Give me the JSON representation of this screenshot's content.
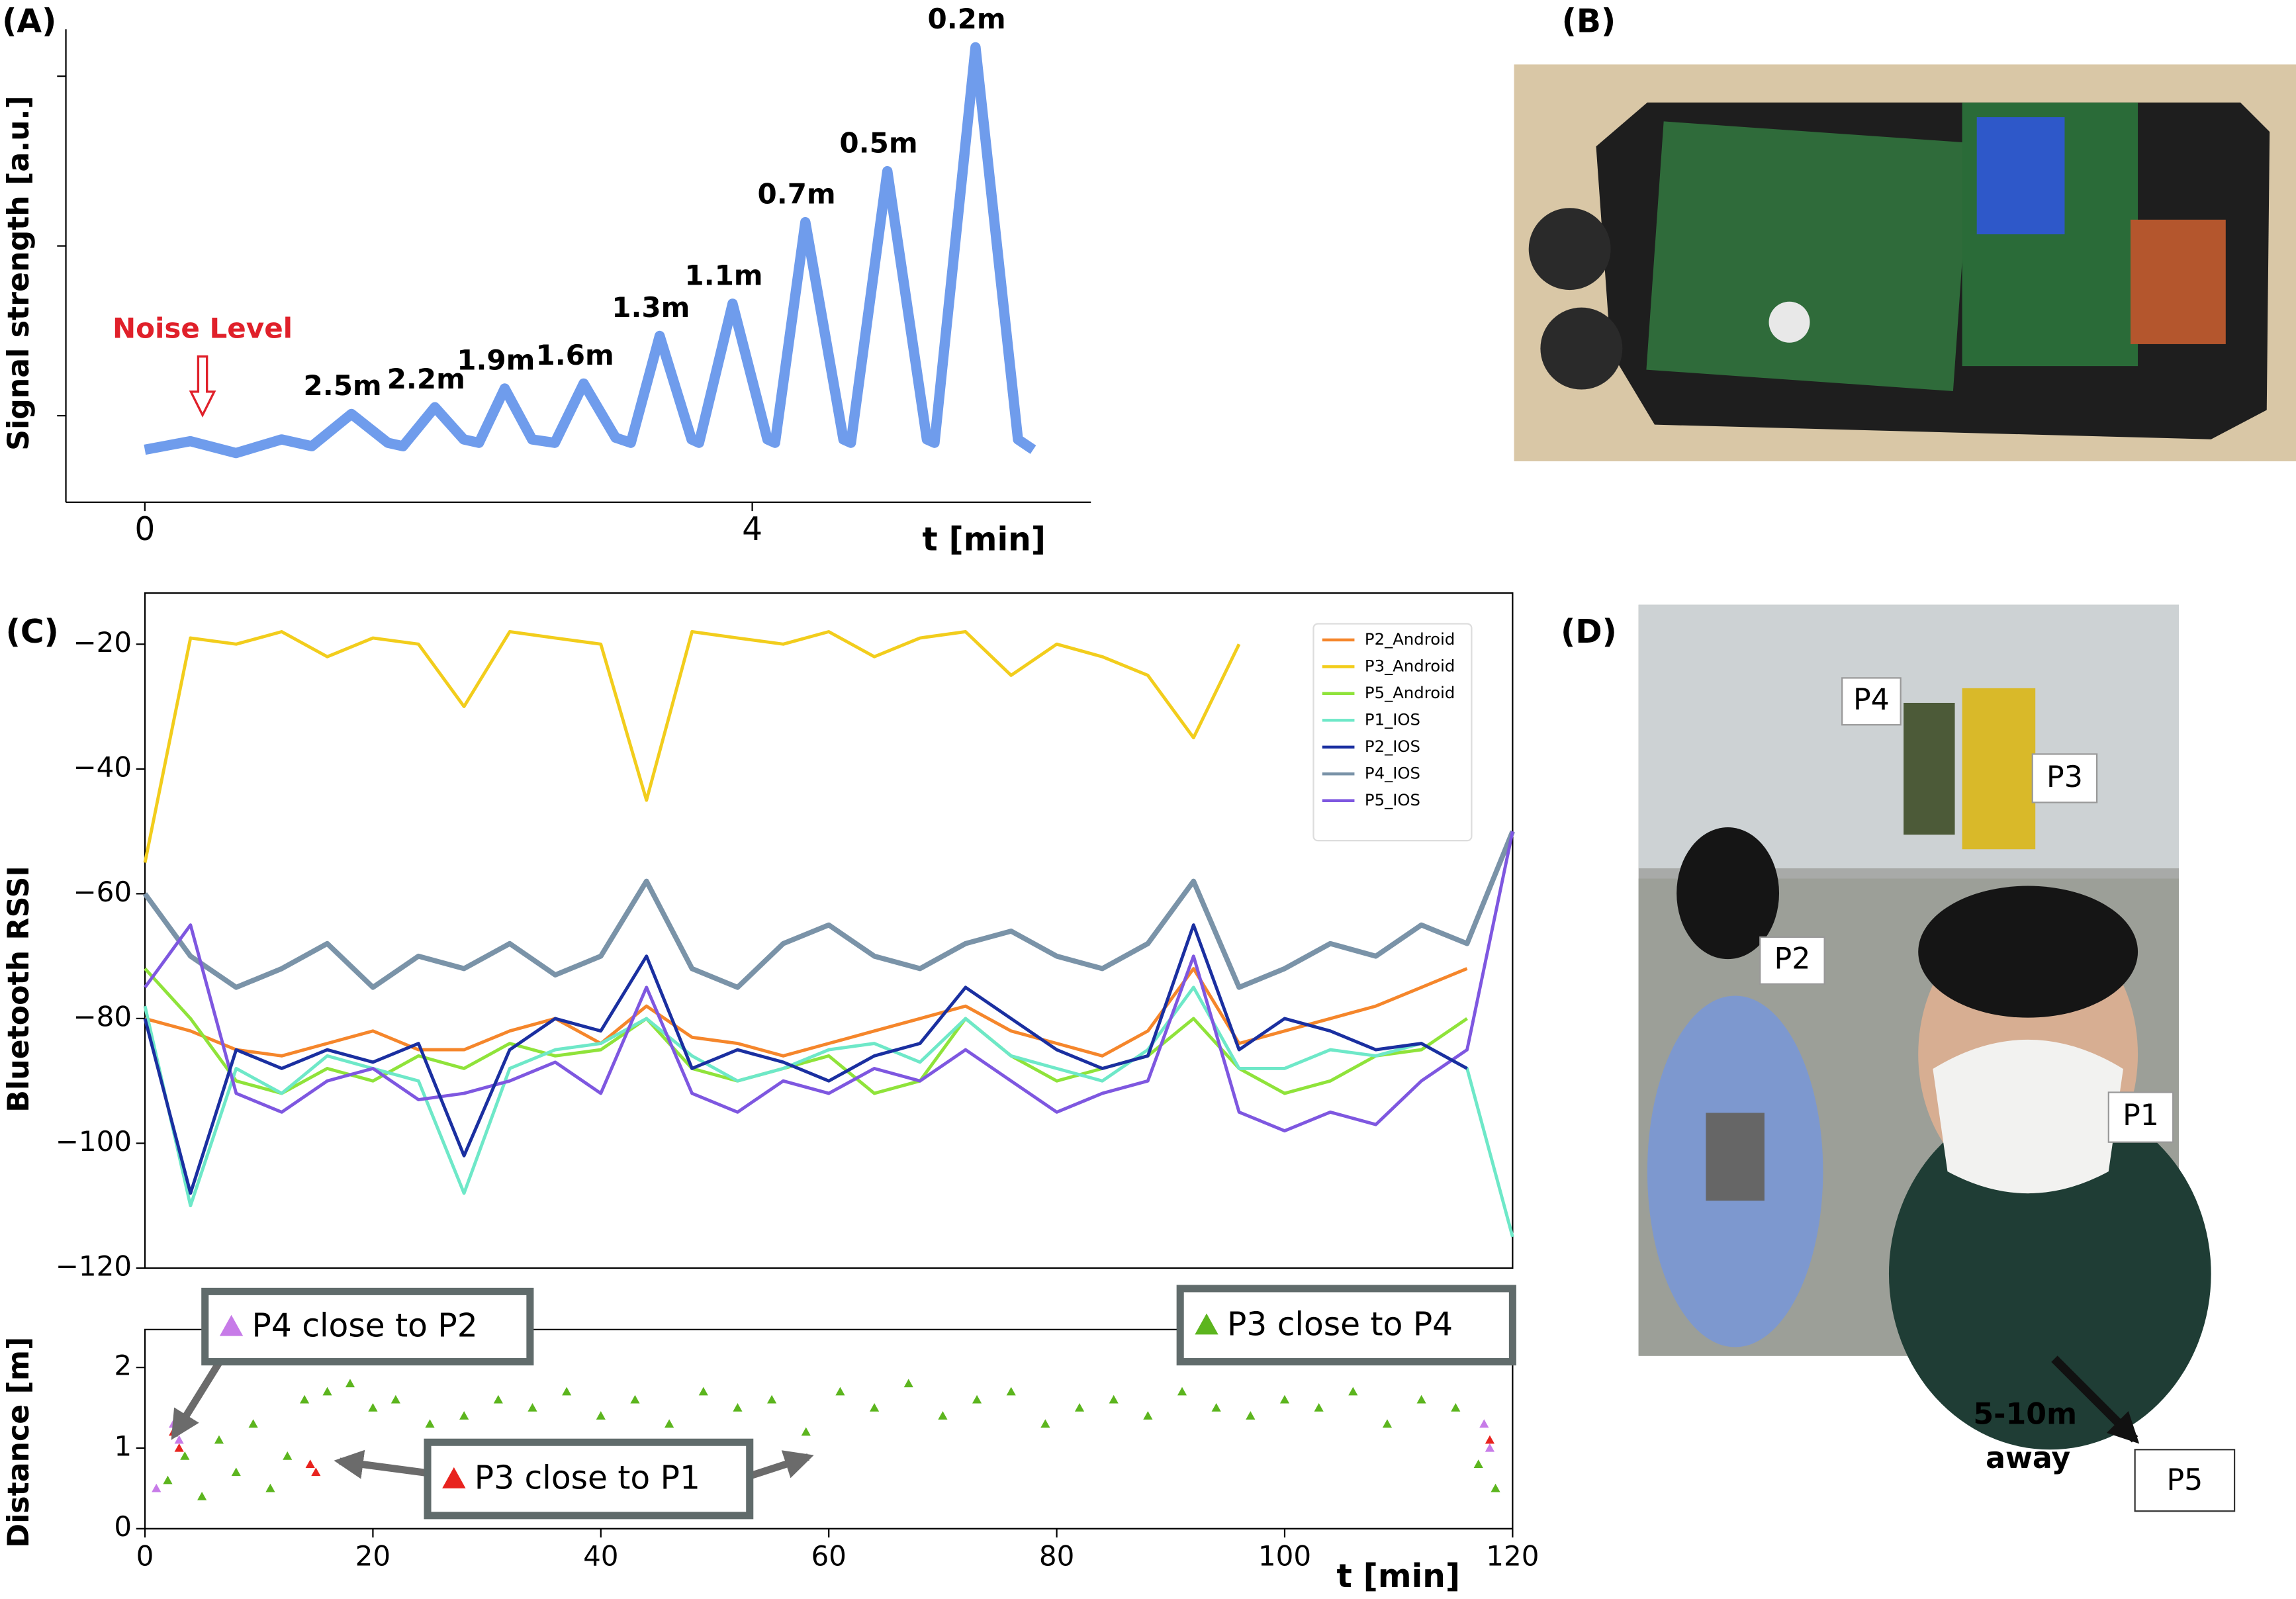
{
  "panel_labels": [
    "(A)",
    "(B)",
    "(C)",
    "(D)"
  ],
  "chart_data": [
    {
      "type": "line",
      "ylabel": "Signal strength [a.u.]",
      "xlabel": "t [min]",
      "color": "#6f9cec",
      "xlim": [
        -0.52,
        6.23
      ],
      "xticks": [
        0,
        4
      ],
      "ylim": [
        0.49,
        3.19
      ],
      "yticks": [
        1,
        2,
        3
      ],
      "x": [
        0,
        0.3,
        0.6,
        0.9,
        1.1,
        1.36,
        1.6,
        1.7,
        1.91,
        2.1,
        2.2,
        2.37,
        2.55,
        2.7,
        2.89,
        3.1,
        3.2,
        3.39,
        3.6,
        3.65,
        3.87,
        4.1,
        4.15,
        4.35,
        4.6,
        4.65,
        4.89,
        5.15,
        5.2,
        5.47,
        5.75,
        5.85
      ],
      "values": [
        0.8,
        0.85,
        0.78,
        0.86,
        0.82,
        1.01,
        0.84,
        0.82,
        1.05,
        0.86,
        0.84,
        1.16,
        0.86,
        0.84,
        1.19,
        0.87,
        0.84,
        1.47,
        0.86,
        0.84,
        1.66,
        0.86,
        0.84,
        2.14,
        0.86,
        0.84,
        2.44,
        0.86,
        0.84,
        3.17,
        0.86,
        0.8
      ],
      "annotations": [
        {
          "text": "2.5m",
          "x": 1.36,
          "y": 1.01
        },
        {
          "text": "2.2m",
          "x": 1.91,
          "y": 1.05
        },
        {
          "text": "1.9m",
          "x": 2.37,
          "y": 1.16
        },
        {
          "text": "1.6m",
          "x": 2.89,
          "y": 1.19
        },
        {
          "text": "1.3m",
          "x": 3.39,
          "y": 1.47
        },
        {
          "text": "1.1m",
          "x": 3.87,
          "y": 1.66
        },
        {
          "text": "0.7m",
          "x": 4.35,
          "y": 2.14
        },
        {
          "text": "0.5m",
          "x": 4.89,
          "y": 2.44
        },
        {
          "text": "0.2m",
          "x": 5.47,
          "y": 3.17
        }
      ],
      "noise_label": {
        "text": "Noise Level",
        "x": 0.38,
        "y": 0.9
      }
    },
    {
      "type": "line",
      "ylabel": "Bluetooth RSSI",
      "legend": "upper right",
      "xlim": [
        0,
        120
      ],
      "ylim": [
        -120,
        -11.8
      ],
      "yticks": [
        {
          "value": -120,
          "label": "−120"
        },
        {
          "value": -100,
          "label": "−100"
        },
        {
          "value": -80,
          "label": "−80"
        },
        {
          "value": -60,
          "label": "−60"
        },
        {
          "value": -40,
          "label": "−40"
        },
        {
          "value": -20,
          "label": "−20"
        }
      ],
      "x": [
        0,
        4,
        8,
        12,
        16,
        20,
        24,
        28,
        32,
        36,
        40,
        44,
        48,
        52,
        56,
        60,
        64,
        68,
        72,
        76,
        80,
        84,
        88,
        92,
        96,
        100,
        104,
        108,
        112,
        116,
        120
      ],
      "series": [
        {
          "name": "P2_Android",
          "color": "#f5862b",
          "values": [
            -80,
            -82,
            -85,
            -86,
            -84,
            -82,
            -85,
            -85,
            -82,
            -80,
            -84,
            -78,
            -83,
            -84,
            -86,
            -84,
            -82,
            -80,
            -78,
            -82,
            -84,
            -86,
            -82,
            -72,
            -84,
            -82,
            -80,
            -78,
            -75,
            -72,
            null
          ]
        },
        {
          "name": "P3_Android",
          "color": "#f2cd1c",
          "values": [
            -55,
            -19,
            -20,
            -18,
            -22,
            -19,
            -20,
            -30,
            -18,
            -19,
            -20,
            -45,
            -18,
            -19,
            -20,
            -18,
            -22,
            -19,
            -18,
            -25,
            -20,
            -22,
            -25,
            -35,
            -20,
            null,
            null,
            null,
            null,
            null,
            null
          ]
        },
        {
          "name": "P5_Android",
          "color": "#8fe33a",
          "values": [
            -72,
            -80,
            -90,
            -92,
            -88,
            -90,
            -86,
            -88,
            -84,
            -86,
            -85,
            -80,
            -88,
            -90,
            -88,
            -86,
            -92,
            -90,
            -80,
            -86,
            -90,
            -88,
            -86,
            -80,
            -88,
            -92,
            -90,
            -86,
            -85,
            -80,
            null
          ]
        },
        {
          "name": "P1_IOS",
          "color": "#6ee8c8",
          "values": [
            -78,
            -110,
            -88,
            -92,
            -86,
            -88,
            -90,
            -108,
            -88,
            -85,
            -84,
            -80,
            -86,
            -90,
            -88,
            -85,
            -84,
            -87,
            -80,
            -86,
            -88,
            -90,
            -85,
            -75,
            -88,
            -88,
            -85,
            -86,
            -84,
            -88,
            -115
          ]
        },
        {
          "name": "P2_IOS",
          "color": "#1a2fa0",
          "values": [
            -80,
            -108,
            -85,
            -88,
            -85,
            -87,
            -84,
            -102,
            -85,
            -80,
            -82,
            -70,
            -88,
            -85,
            -87,
            -90,
            -86,
            -84,
            -75,
            -80,
            -85,
            -88,
            -86,
            -65,
            -85,
            -80,
            -82,
            -85,
            -84,
            -88,
            null
          ]
        },
        {
          "name": "P4_IOS",
          "color": "#7a93a8",
          "values": [
            -60,
            -70,
            -75,
            -72,
            -68,
            -75,
            -70,
            -72,
            -68,
            -73,
            -70,
            -58,
            -72,
            -75,
            -68,
            -65,
            -70,
            -72,
            -68,
            -66,
            -70,
            -72,
            -68,
            -58,
            -75,
            -72,
            -68,
            -70,
            -65,
            -68,
            -50
          ]
        },
        {
          "name": "P5_IOS",
          "color": "#7e57e0",
          "values": [
            -75,
            -65,
            -92,
            -95,
            -90,
            -88,
            -93,
            -92,
            -90,
            -87,
            -92,
            -75,
            -92,
            -95,
            -90,
            -92,
            -88,
            -90,
            -85,
            -90,
            -95,
            -92,
            -90,
            -70,
            -95,
            -98,
            -95,
            -97,
            -90,
            -85,
            -50
          ]
        }
      ]
    },
    {
      "type": "scatter",
      "ylabel": "Distance [m]",
      "xlabel": "t [min]",
      "xlim": [
        0,
        120
      ],
      "xticks": [
        0,
        20,
        40,
        60,
        80,
        100,
        120
      ],
      "ylim": [
        0,
        2.47
      ],
      "yticks": [
        0,
        1,
        2
      ],
      "series": [
        {
          "name": "P4 close to P2",
          "color": "#c77be8",
          "x": [
            1,
            2.5,
            3,
            117.5,
            118
          ],
          "values": [
            0.5,
            1.3,
            1.1,
            1.3,
            1.0
          ]
        },
        {
          "name": "P3 close to P4",
          "color": "#5cb51e",
          "x": [
            2,
            3.5,
            5,
            6.5,
            8,
            9.5,
            11,
            12.5,
            14,
            16,
            18,
            20,
            22,
            25,
            28,
            31,
            34,
            37,
            40,
            43,
            46,
            49,
            52,
            55,
            58,
            61,
            64,
            67,
            70,
            73,
            76,
            79,
            82,
            85,
            88,
            91,
            94,
            97,
            100,
            103,
            106,
            109,
            112,
            115,
            117,
            118.5
          ],
          "values": [
            0.6,
            0.9,
            0.4,
            1.1,
            0.7,
            1.3,
            0.5,
            0.9,
            1.6,
            1.7,
            1.8,
            1.5,
            1.6,
            1.3,
            1.4,
            1.6,
            1.5,
            1.7,
            1.4,
            1.6,
            1.3,
            1.7,
            1.5,
            1.6,
            1.2,
            1.7,
            1.5,
            1.8,
            1.4,
            1.6,
            1.7,
            1.3,
            1.5,
            1.6,
            1.4,
            1.7,
            1.5,
            1.4,
            1.6,
            1.5,
            1.7,
            1.3,
            1.6,
            1.5,
            0.8,
            0.5
          ]
        },
        {
          "name": "P3 close to P1",
          "color": "#e8231e",
          "x": [
            2.5,
            3,
            14.5,
            15,
            118
          ],
          "values": [
            1.2,
            1.0,
            0.8,
            0.7,
            1.1
          ]
        }
      ]
    }
  ],
  "photo_d": {
    "labels": [
      "P4",
      "P3",
      "P2",
      "P1"
    ],
    "note": [
      "5-10m",
      "away"
    ],
    "box": "P5"
  }
}
